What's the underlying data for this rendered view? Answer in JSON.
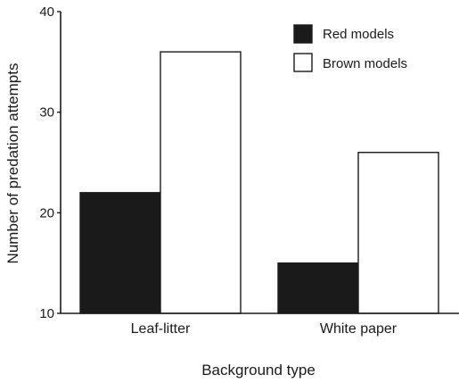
{
  "chart_data": {
    "type": "bar",
    "title": "",
    "xlabel": "Background type",
    "ylabel": "Number of predation attempts",
    "categories": [
      "Leaf-litter",
      "White paper"
    ],
    "series": [
      {
        "name": "Red models",
        "values": [
          22,
          15
        ],
        "color": "#1a1a1a"
      },
      {
        "name": "Brown models",
        "values": [
          36,
          26
        ],
        "color": "#ffffff"
      }
    ],
    "ylim": [
      10,
      40
    ],
    "yticks": [
      "10",
      "20",
      "30",
      "40"
    ],
    "grid": false,
    "legend_position": "top-right"
  }
}
